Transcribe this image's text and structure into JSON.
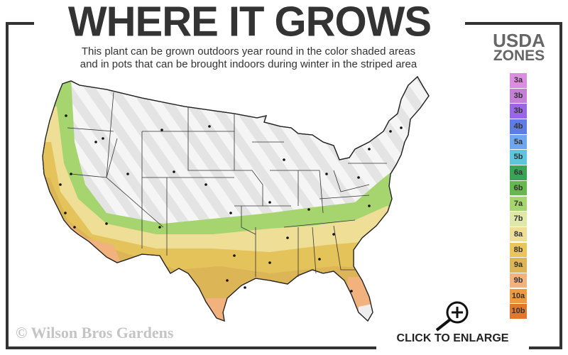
{
  "header": {
    "title": "WHERE IT GROWS",
    "subtitle_line1": "This plant can be grown outdoors year round in the color shaded areas",
    "subtitle_line2": "and in pots that can be brought indoors during winter in the striped area"
  },
  "legend": {
    "title_line1": "USDA",
    "title_line2": "ZONES",
    "zones": [
      {
        "label": "3a",
        "color": "#d98ee0"
      },
      {
        "label": "3b",
        "color": "#c47fd6"
      },
      {
        "label": "3b",
        "color": "#9a66e8"
      },
      {
        "label": "4b",
        "color": "#5f7be6"
      },
      {
        "label": "5a",
        "color": "#6fa6f0"
      },
      {
        "label": "5b",
        "color": "#5ec6dc"
      },
      {
        "label": "6a",
        "color": "#3aa356"
      },
      {
        "label": "6b",
        "color": "#66b84e"
      },
      {
        "label": "7a",
        "color": "#a6d46e"
      },
      {
        "label": "7b",
        "color": "#dfe8a8"
      },
      {
        "label": "8a",
        "color": "#efdf96"
      },
      {
        "label": "8b",
        "color": "#e9c55a"
      },
      {
        "label": "9a",
        "color": "#dcb556"
      },
      {
        "label": "9b",
        "color": "#f2b27e"
      },
      {
        "label": "10a",
        "color": "#ee9a3e"
      },
      {
        "label": "10b",
        "color": "#e0782e"
      }
    ]
  },
  "map": {
    "stripe_color": "#e6e6e6",
    "base_color": "#f4f4f4"
  },
  "footer": {
    "copyright": "© Wilson Bros Gardens",
    "enlarge_label": "CLICK TO ENLARGE",
    "enlarge_icon": "magnifier-plus-icon"
  }
}
